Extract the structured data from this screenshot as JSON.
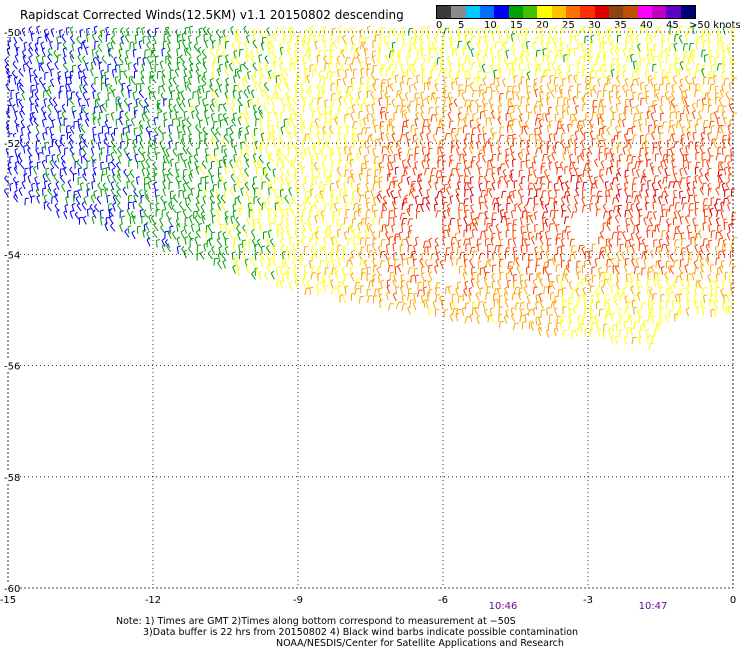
{
  "title": "Rapidscat Corrected Winds(12.5KM) v1.1 20150802 descending",
  "colorbar": {
    "colors": [
      "#3a3a3a",
      "#8a8a8a",
      "#00c8ff",
      "#0070ff",
      "#0000ff",
      "#00a000",
      "#40c000",
      "#ffff00",
      "#ffc000",
      "#ff7000",
      "#ff3000",
      "#e00000",
      "#8b4513",
      "#c05000",
      "#ff00ff",
      "#c000c0",
      "#6000c0",
      "#000070"
    ],
    "labels": [
      "0",
      "5",
      "10",
      "15",
      "20",
      "25",
      "30",
      "35",
      "40",
      "45",
      ">50 knots"
    ]
  },
  "axes": {
    "lon_ticks": [
      "-15",
      "-12",
      "-9",
      "-6",
      "-3",
      "0"
    ],
    "lat_ticks": [
      "-50",
      "-52",
      "-54",
      "-56",
      "-58",
      "-60"
    ],
    "lon_range": [
      -15,
      0
    ],
    "lat_range": [
      -60,
      -50
    ],
    "grid": true
  },
  "times": [
    "10:46",
    "10:47"
  ],
  "notes": {
    "line1": "Note: 1) Times are GMT 2)Times along bottom correspond to measurement at −50S",
    "line2": "3)Data buffer is 22 hrs from 20150802 4) Black wind barbs indicate possible contamination",
    "line3": "NOAA/NESDIS/Center for Satellite Applications and Research"
  }
}
